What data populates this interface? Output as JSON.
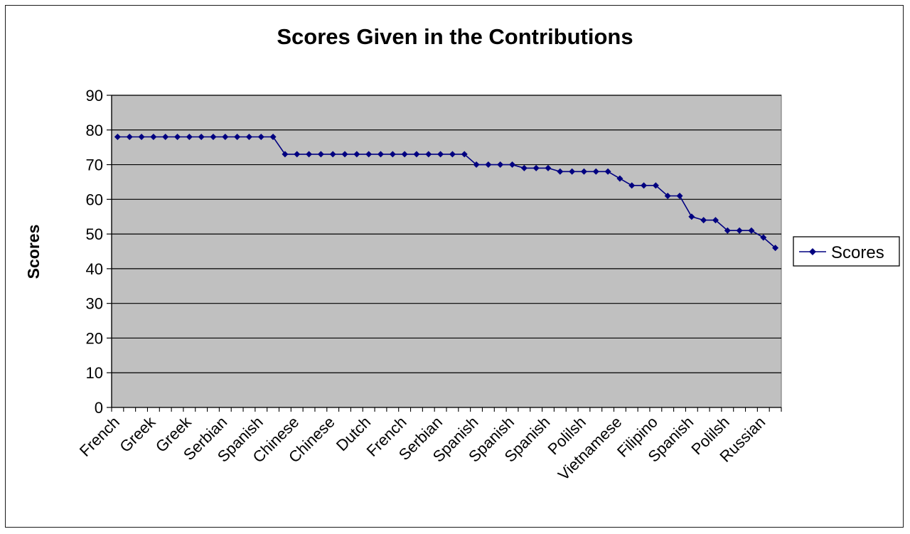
{
  "chart_data": {
    "type": "line",
    "title": "Scores Given in the Contributions",
    "xlabel": "",
    "ylabel": "Scores",
    "ylim": [
      0,
      90
    ],
    "yticks": [
      0,
      10,
      20,
      30,
      40,
      50,
      60,
      70,
      80,
      90
    ],
    "grid": true,
    "legend_position": "right",
    "category_labels": [
      "French",
      "Greek",
      "Greek",
      "Serbian",
      "Spanish",
      "Chinese",
      "Chinese",
      "Dutch",
      "French",
      "Serbian",
      "Spanish",
      "Spanish",
      "Spanish",
      "Polilsh",
      "Vietnamese",
      "Filipino",
      "Spanish",
      "Polilsh",
      "Russian"
    ],
    "series": [
      {
        "name": "Scores",
        "color": "#000080",
        "values": [
          78,
          78,
          78,
          78,
          78,
          78,
          78,
          78,
          78,
          78,
          78,
          78,
          78,
          78,
          73,
          73,
          73,
          73,
          73,
          73,
          73,
          73,
          73,
          73,
          73,
          73,
          73,
          73,
          73,
          73,
          70,
          70,
          70,
          70,
          69,
          69,
          69,
          68,
          68,
          68,
          68,
          68,
          66,
          64,
          64,
          64,
          61,
          61,
          55,
          54,
          54,
          51,
          51,
          51,
          49,
          46
        ]
      }
    ],
    "plot_background": "#c0c0c0"
  }
}
